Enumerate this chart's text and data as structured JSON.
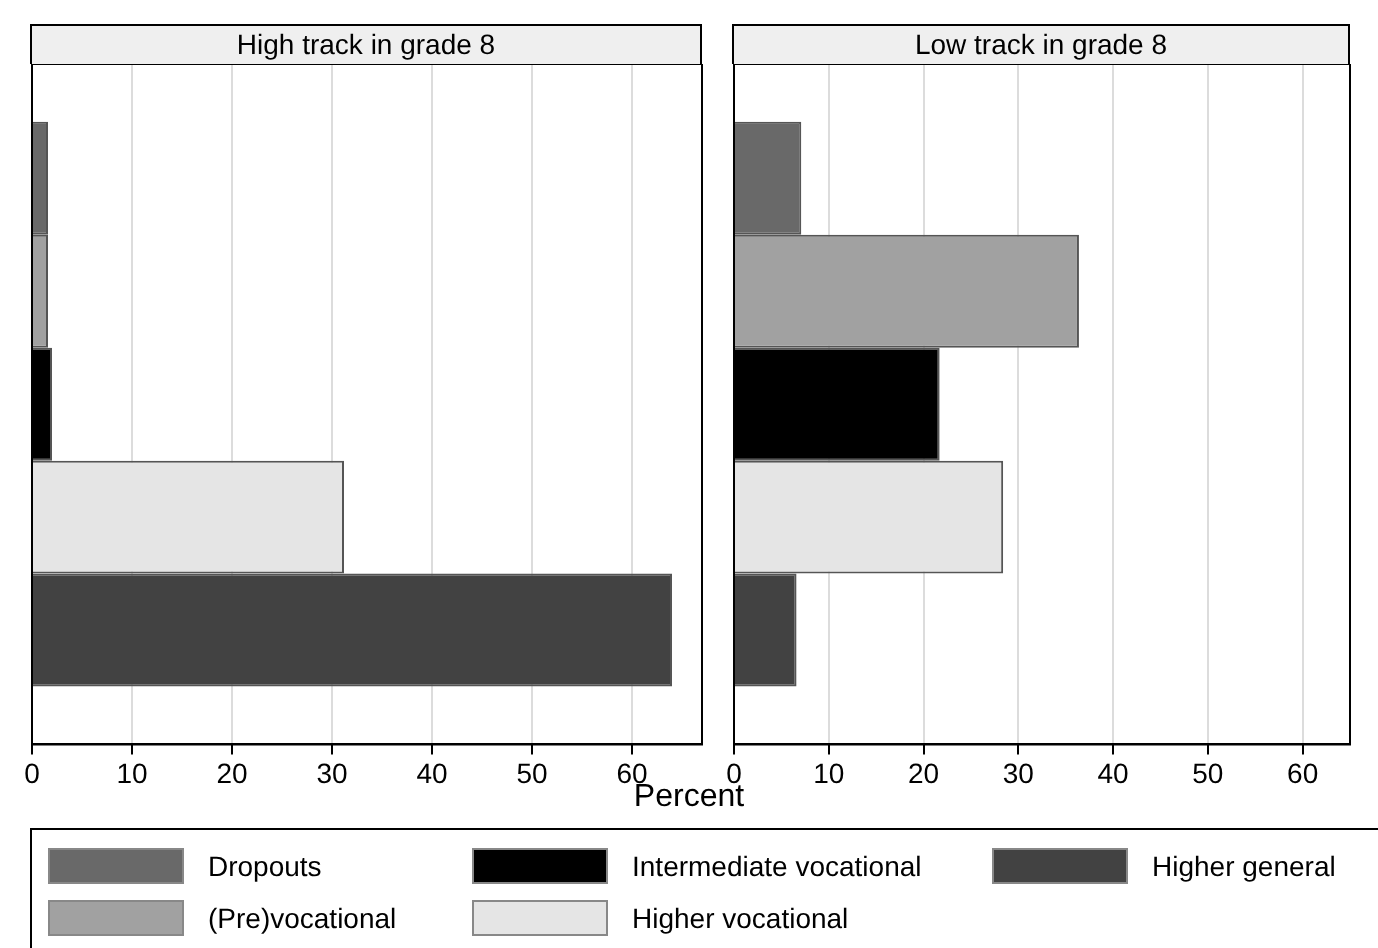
{
  "chart_data": [
    {
      "type": "bar",
      "orientation": "horizontal",
      "title": "High track in grade 8",
      "xlabel": "Percent",
      "categories": [
        null
      ],
      "xlim": [
        0,
        67
      ],
      "xticks": [
        0,
        10,
        20,
        30,
        40,
        50,
        60
      ],
      "grid": "x",
      "legend": "bottom",
      "series": [
        {
          "name": "Dropouts",
          "color": "#696969",
          "values": [
            1.6
          ]
        },
        {
          "name": "(Pre)vocational",
          "color": "#a1a1a1",
          "values": [
            1.6
          ]
        },
        {
          "name": "Intermediate vocational",
          "color": "#000000",
          "values": [
            2.0
          ]
        },
        {
          "name": "Higher vocational",
          "color": "#e5e5e5",
          "values": [
            31.2
          ]
        },
        {
          "name": "Higher general",
          "color": "#424242",
          "values": [
            64.0
          ]
        }
      ]
    },
    {
      "type": "bar",
      "orientation": "horizontal",
      "title": "Low track in grade 8",
      "categories": [
        null
      ],
      "xlim": [
        0,
        65
      ],
      "xticks": [
        0,
        10,
        20,
        30,
        40,
        50,
        60
      ],
      "grid": "x",
      "series": [
        {
          "name": "Dropouts",
          "color": "#696969",
          "values": [
            7.1
          ]
        },
        {
          "name": "(Pre)vocational",
          "color": "#a1a1a1",
          "values": [
            36.4
          ]
        },
        {
          "name": "Intermediate vocational",
          "color": "#000000",
          "values": [
            21.7
          ]
        },
        {
          "name": "Higher vocational",
          "color": "#e5e5e5",
          "values": [
            28.4
          ]
        },
        {
          "name": "Higher general",
          "color": "#424242",
          "values": [
            6.6
          ]
        }
      ]
    }
  ]
}
